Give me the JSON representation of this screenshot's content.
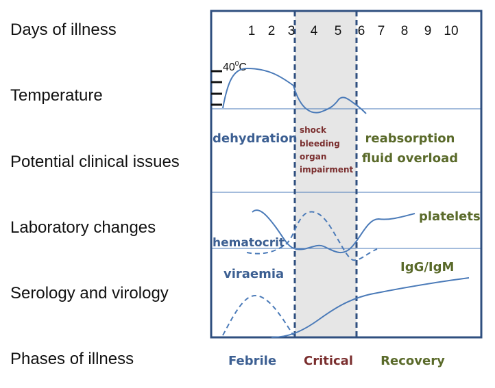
{
  "row_labels": {
    "days": "Days of illness",
    "temperature": "Temperature",
    "clinical": "Potential clinical issues",
    "laboratory": "Laboratory changes",
    "serology": "Serology and virology",
    "phases": "Phases of  illness"
  },
  "days": [
    "1",
    "2",
    "3",
    "4",
    "5",
    "6",
    "7",
    "8",
    "9",
    "10"
  ],
  "temperature_marker": {
    "base": "40",
    "sup": "0",
    "unit": "C"
  },
  "clinical": {
    "febrile": "dehydration",
    "critical": [
      "shock",
      "bleeding",
      "organ",
      "impairment"
    ],
    "recovery": [
      "reabsorption",
      "fluid overload"
    ]
  },
  "laboratory": {
    "hematocrit": "hematocrit",
    "platelets": "platelets"
  },
  "serology": {
    "viraemia": "viraemia",
    "antibodies": "IgG/IgM"
  },
  "phases": {
    "febrile": "Febrile",
    "critical": "Critical",
    "recovery": "Recovery"
  },
  "colors": {
    "frame": "#2f4f7f",
    "curve": "#4a7ab8",
    "febrile_text": "#3c5f92",
    "critical_text": "#7a2e2e",
    "recovery_text": "#5a6a2a",
    "critical_shade": "#e6e6e6"
  }
}
